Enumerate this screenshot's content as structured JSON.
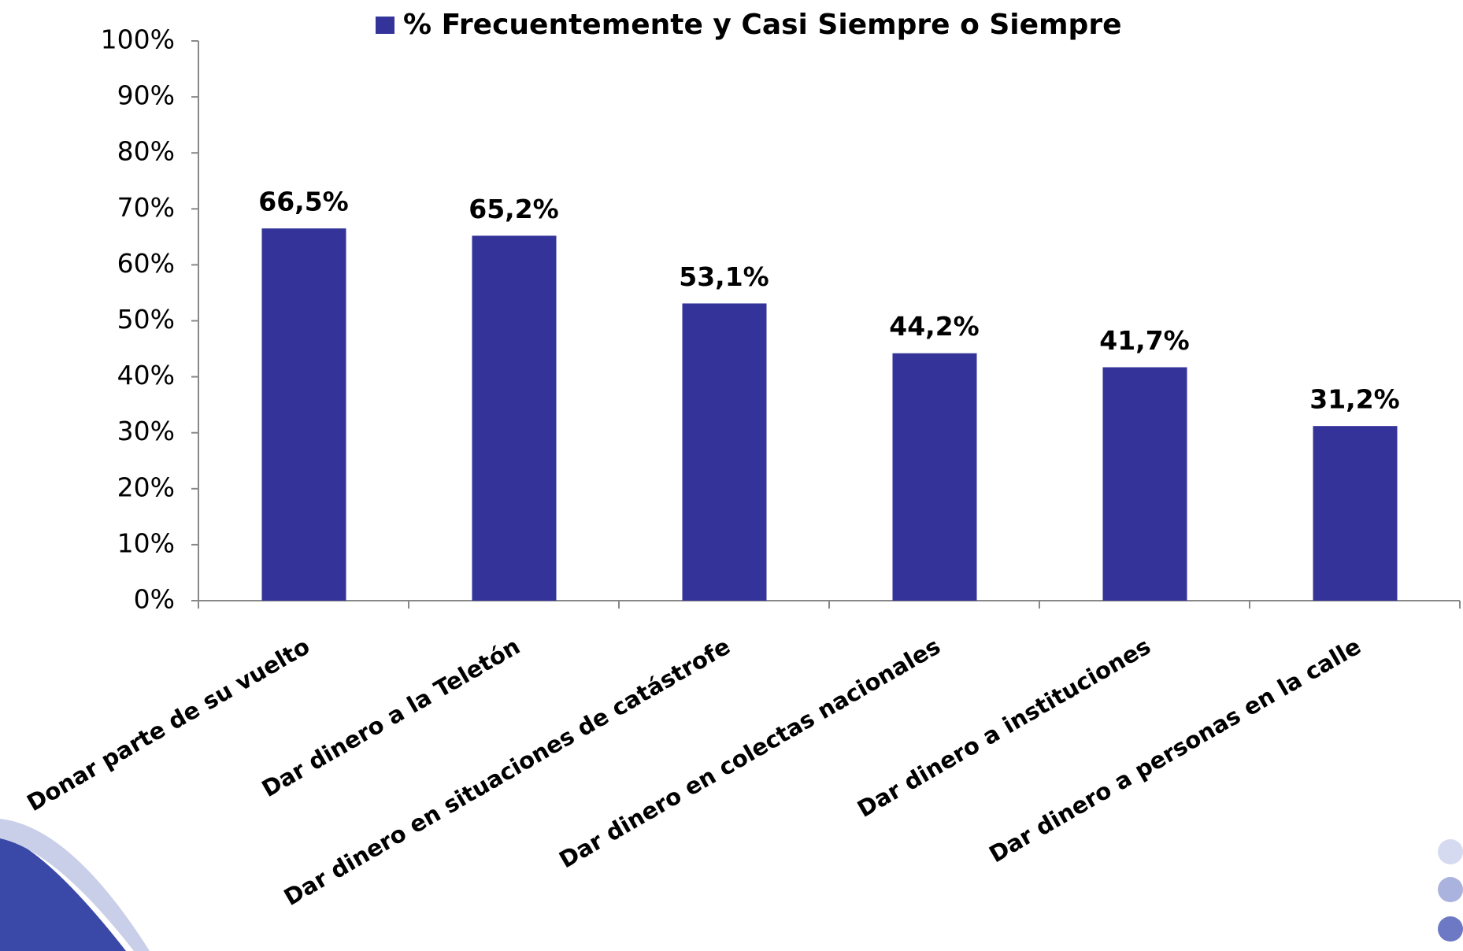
{
  "chart_data": {
    "type": "bar",
    "categories": [
      "Donar parte de su vuelto",
      "Dar dinero a la Teletón",
      "Dar dinero en situaciones de catástrofe",
      "Dar dinero en colectas nacionales",
      "Dar dinero a instituciones",
      "Dar dinero a personas en la calle"
    ],
    "series": [
      {
        "name": "% Frecuentemente y Casi Siempre o Siempre",
        "color": "#333399",
        "values": [
          66.5,
          65.2,
          53.1,
          44.2,
          41.7,
          31.2
        ],
        "value_labels": [
          "66,5%",
          "65,2%",
          "53,1%",
          "44,2%",
          "41,7%",
          "31,2%"
        ]
      }
    ],
    "ylim": [
      0,
      100
    ],
    "yticks": [
      {
        "value": 0,
        "label": "0%"
      },
      {
        "value": 10,
        "label": "10%"
      },
      {
        "value": 20,
        "label": "20%"
      },
      {
        "value": 30,
        "label": "30%"
      },
      {
        "value": 40,
        "label": "40%"
      },
      {
        "value": 50,
        "label": "50%"
      },
      {
        "value": 60,
        "label": "60%"
      },
      {
        "value": 70,
        "label": "70%"
      },
      {
        "value": 80,
        "label": "80%"
      },
      {
        "value": 90,
        "label": "90%"
      },
      {
        "value": 100,
        "label": "100%"
      }
    ],
    "legend": "top"
  }
}
